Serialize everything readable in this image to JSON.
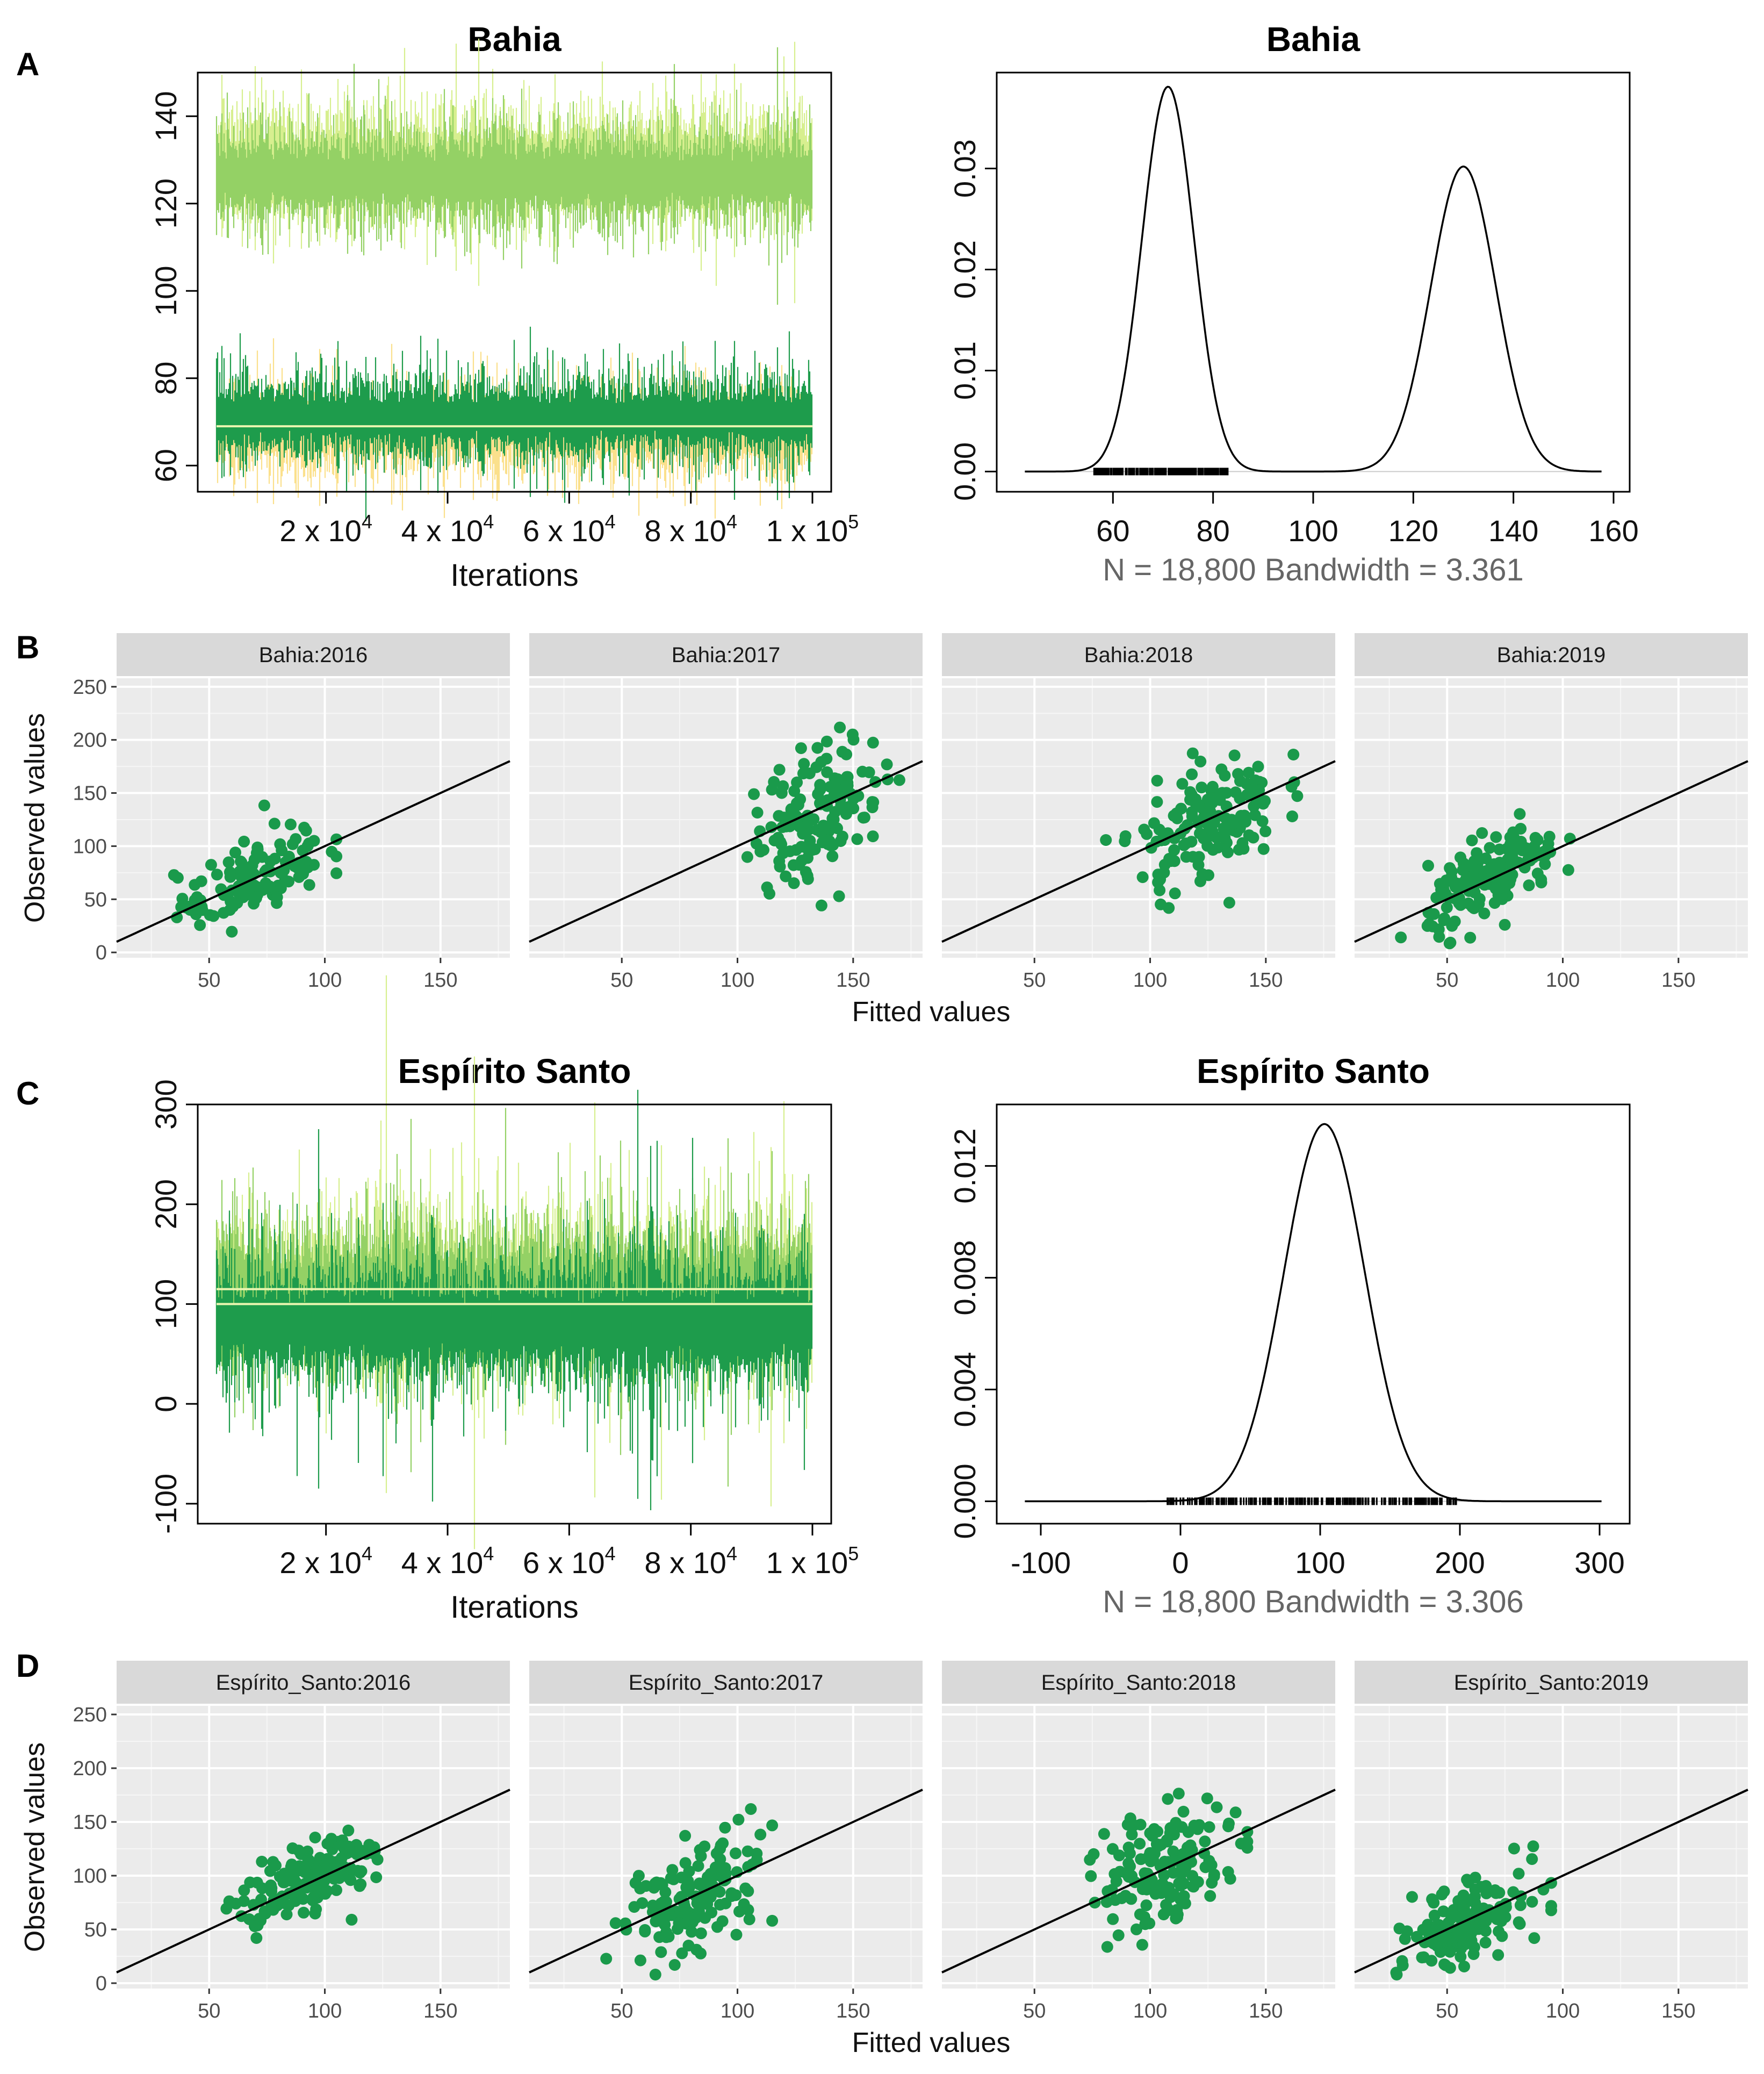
{
  "panels": {
    "A": "A",
    "B": "B",
    "C": "C",
    "D": "D"
  },
  "colors": {
    "chain_light": "#d7ef8f",
    "chain_mid": "#94d165",
    "chain_dark": "#1e9c4c",
    "chain_yellow": "#fbe08c",
    "mean_line": "#eaf6b0",
    "point": "#1a9a4b",
    "panel_bg": "#ebebeb",
    "strip_bg": "#d9d9d9"
  },
  "chart_data": [
    {
      "id": "A_trace",
      "type": "line",
      "title": "Bahia",
      "xlabel": "Iterations",
      "ylabel": "",
      "xticks": [
        "2 x 10^4",
        "4 x 10^4",
        "6 x 10^4",
        "8 x 10^4",
        "1 x 10^5"
      ],
      "yticks": [
        60,
        80,
        100,
        120,
        140
      ],
      "xlim": [
        2000,
        100000
      ],
      "ylim": [
        54,
        150
      ],
      "series": [
        {
          "color": "chain_light",
          "center": 129,
          "spread": 8
        },
        {
          "color": "chain_mid",
          "center": 126,
          "spread": 7
        },
        {
          "color": "chain_yellow",
          "center": 68,
          "spread": 6
        },
        {
          "color": "chain_dark",
          "center": 71,
          "spread": 6
        }
      ],
      "mean_line": 69
    },
    {
      "id": "A_density",
      "type": "line",
      "title": "Bahia",
      "xlabel": "N = 18,800 Bandwidth = 3.361",
      "ylabel": "",
      "xticks": [
        60,
        80,
        100,
        120,
        140,
        160
      ],
      "yticks": [
        "0.00",
        "0.01",
        "0.02",
        "0.03"
      ],
      "xlim": [
        40,
        160
      ],
      "ylim": [
        -0.002,
        0.0395
      ],
      "peaks": [
        {
          "mean": 71,
          "sd": 5.2,
          "height": 0.0381
        },
        {
          "mean": 130,
          "sd": 6.5,
          "height": 0.0302
        }
      ],
      "rug_range": [
        56,
        83
      ]
    },
    {
      "id": "B_facets",
      "type": "scatter",
      "xlabel": "Fitted values",
      "ylabel": "Observed values",
      "xticks": [
        50,
        100,
        150
      ],
      "yticks": [
        0,
        50,
        100,
        150,
        200,
        250
      ],
      "xlim": [
        10,
        180
      ],
      "ylim": [
        -5,
        258
      ],
      "reference_line": {
        "intercept": 0,
        "slope": 1
      },
      "facets": [
        {
          "label": "Bahia:2016",
          "xmean": 68,
          "xsd": 16,
          "resid": 18,
          "x_range": [
            25,
            105
          ],
          "n": 120
        },
        {
          "label": "Bahia:2017",
          "xmean": 135,
          "xsd": 14,
          "resid": 30,
          "x_range": [
            90,
            170
          ],
          "n": 150
        },
        {
          "label": "Bahia:2018",
          "xmean": 125,
          "xsd": 15,
          "resid": 28,
          "x_range": [
            80,
            165
          ],
          "n": 150
        },
        {
          "label": "Bahia:2019",
          "xmean": 70,
          "xsd": 14,
          "resid": 18,
          "x_range": [
            28,
            108
          ],
          "n": 150
        }
      ]
    },
    {
      "id": "C_trace",
      "type": "line",
      "title": "Espírito Santo",
      "xlabel": "Iterations",
      "ylabel": "",
      "xticks": [
        "2 x 10^4",
        "4 x 10^4",
        "6 x 10^4",
        "8 x 10^4",
        "1 x 10^5"
      ],
      "yticks": [
        -100,
        0,
        100,
        200,
        300
      ],
      "xlim": [
        2000,
        100000
      ],
      "ylim": [
        -120,
        300
      ],
      "series": [
        {
          "color": "chain_light",
          "center": 115,
          "spread": 45
        },
        {
          "color": "chain_mid",
          "center": 110,
          "spread": 42
        },
        {
          "color": "chain_dark",
          "center": 80,
          "spread": 38
        }
      ],
      "mean_lines": [
        100,
        115
      ]
    },
    {
      "id": "C_density",
      "type": "line",
      "title": "Espírito Santo",
      "xlabel": "N = 18,800 Bandwidth = 3.306",
      "ylabel": "",
      "xticks": [
        -100,
        0,
        100,
        200,
        300
      ],
      "yticks": [
        "0.000",
        "0.004",
        "0.008",
        "0.012"
      ],
      "xlim": [
        -120,
        310
      ],
      "ylim": [
        -0.0008,
        0.0142
      ],
      "peaks": [
        {
          "mean": 103,
          "sd": 29,
          "height": 0.0135
        }
      ],
      "rug_range": [
        -10,
        200
      ]
    },
    {
      "id": "D_facets",
      "type": "scatter",
      "xlabel": "Fitted values",
      "ylabel": "Observed values",
      "xticks": [
        50,
        100,
        150
      ],
      "yticks": [
        0,
        50,
        100,
        150,
        200,
        250
      ],
      "xlim": [
        10,
        180
      ],
      "ylim": [
        -5,
        258
      ],
      "reference_line": {
        "intercept": 0,
        "slope": 1
      },
      "facets": [
        {
          "label": "Espírito_Santo:2016",
          "xmean": 95,
          "xsd": 15,
          "resid": 17,
          "x_range": [
            50,
            128
          ],
          "n": 150
        },
        {
          "label": "Espírito_Santo:2017",
          "xmean": 82,
          "xsd": 15,
          "resid": 25,
          "x_range": [
            35,
            115
          ],
          "n": 150
        },
        {
          "label": "Espírito_Santo:2018",
          "xmean": 108,
          "xsd": 15,
          "resid": 28,
          "x_range": [
            62,
            142
          ],
          "n": 150
        },
        {
          "label": "Espírito_Santo:2019",
          "xmean": 60,
          "xsd": 14,
          "resid": 20,
          "x_range": [
            28,
            95
          ],
          "n": 150
        }
      ]
    }
  ]
}
